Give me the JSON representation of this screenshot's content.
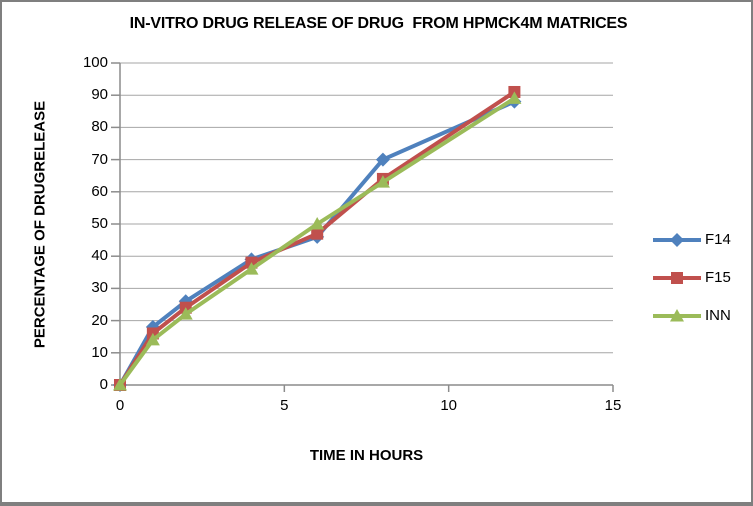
{
  "window": {
    "background": "#ffffff",
    "border_color": "#7f7f7f"
  },
  "chart_data": {
    "type": "line",
    "title": "IN-VITRO DRUG RELEASE OF DRUG  FROM HPMCK4M MATRICES",
    "xlabel": "TIME IN HOURS",
    "ylabel": "PERCENTAGE OF DRUGRELEASE",
    "x": [
      0,
      1,
      2,
      4,
      6,
      8,
      12
    ],
    "series": [
      {
        "name": "F14",
        "marker": "diamond",
        "color": "#4F81BD",
        "values": [
          0,
          18,
          26,
          39,
          46,
          70,
          88
        ]
      },
      {
        "name": "F15",
        "marker": "square",
        "color": "#C0504D",
        "values": [
          0,
          16,
          24,
          38,
          47,
          64,
          91
        ]
      },
      {
        "name": "INN",
        "marker": "triangle",
        "color": "#9BBB59",
        "values": [
          0,
          14,
          22,
          36,
          50,
          63,
          89
        ]
      }
    ],
    "xlim": [
      0,
      15
    ],
    "ylim": [
      0,
      100
    ],
    "xticks": [
      0,
      5,
      10,
      15
    ],
    "yticks": [
      0,
      10,
      20,
      30,
      40,
      50,
      60,
      70,
      80,
      90,
      100
    ],
    "grid": "horizontal",
    "legend_position": "right",
    "gridline_color": "#a6a6a6",
    "axis_color": "#8c8c8c",
    "text_color": "#000000",
    "line_width": 4
  }
}
